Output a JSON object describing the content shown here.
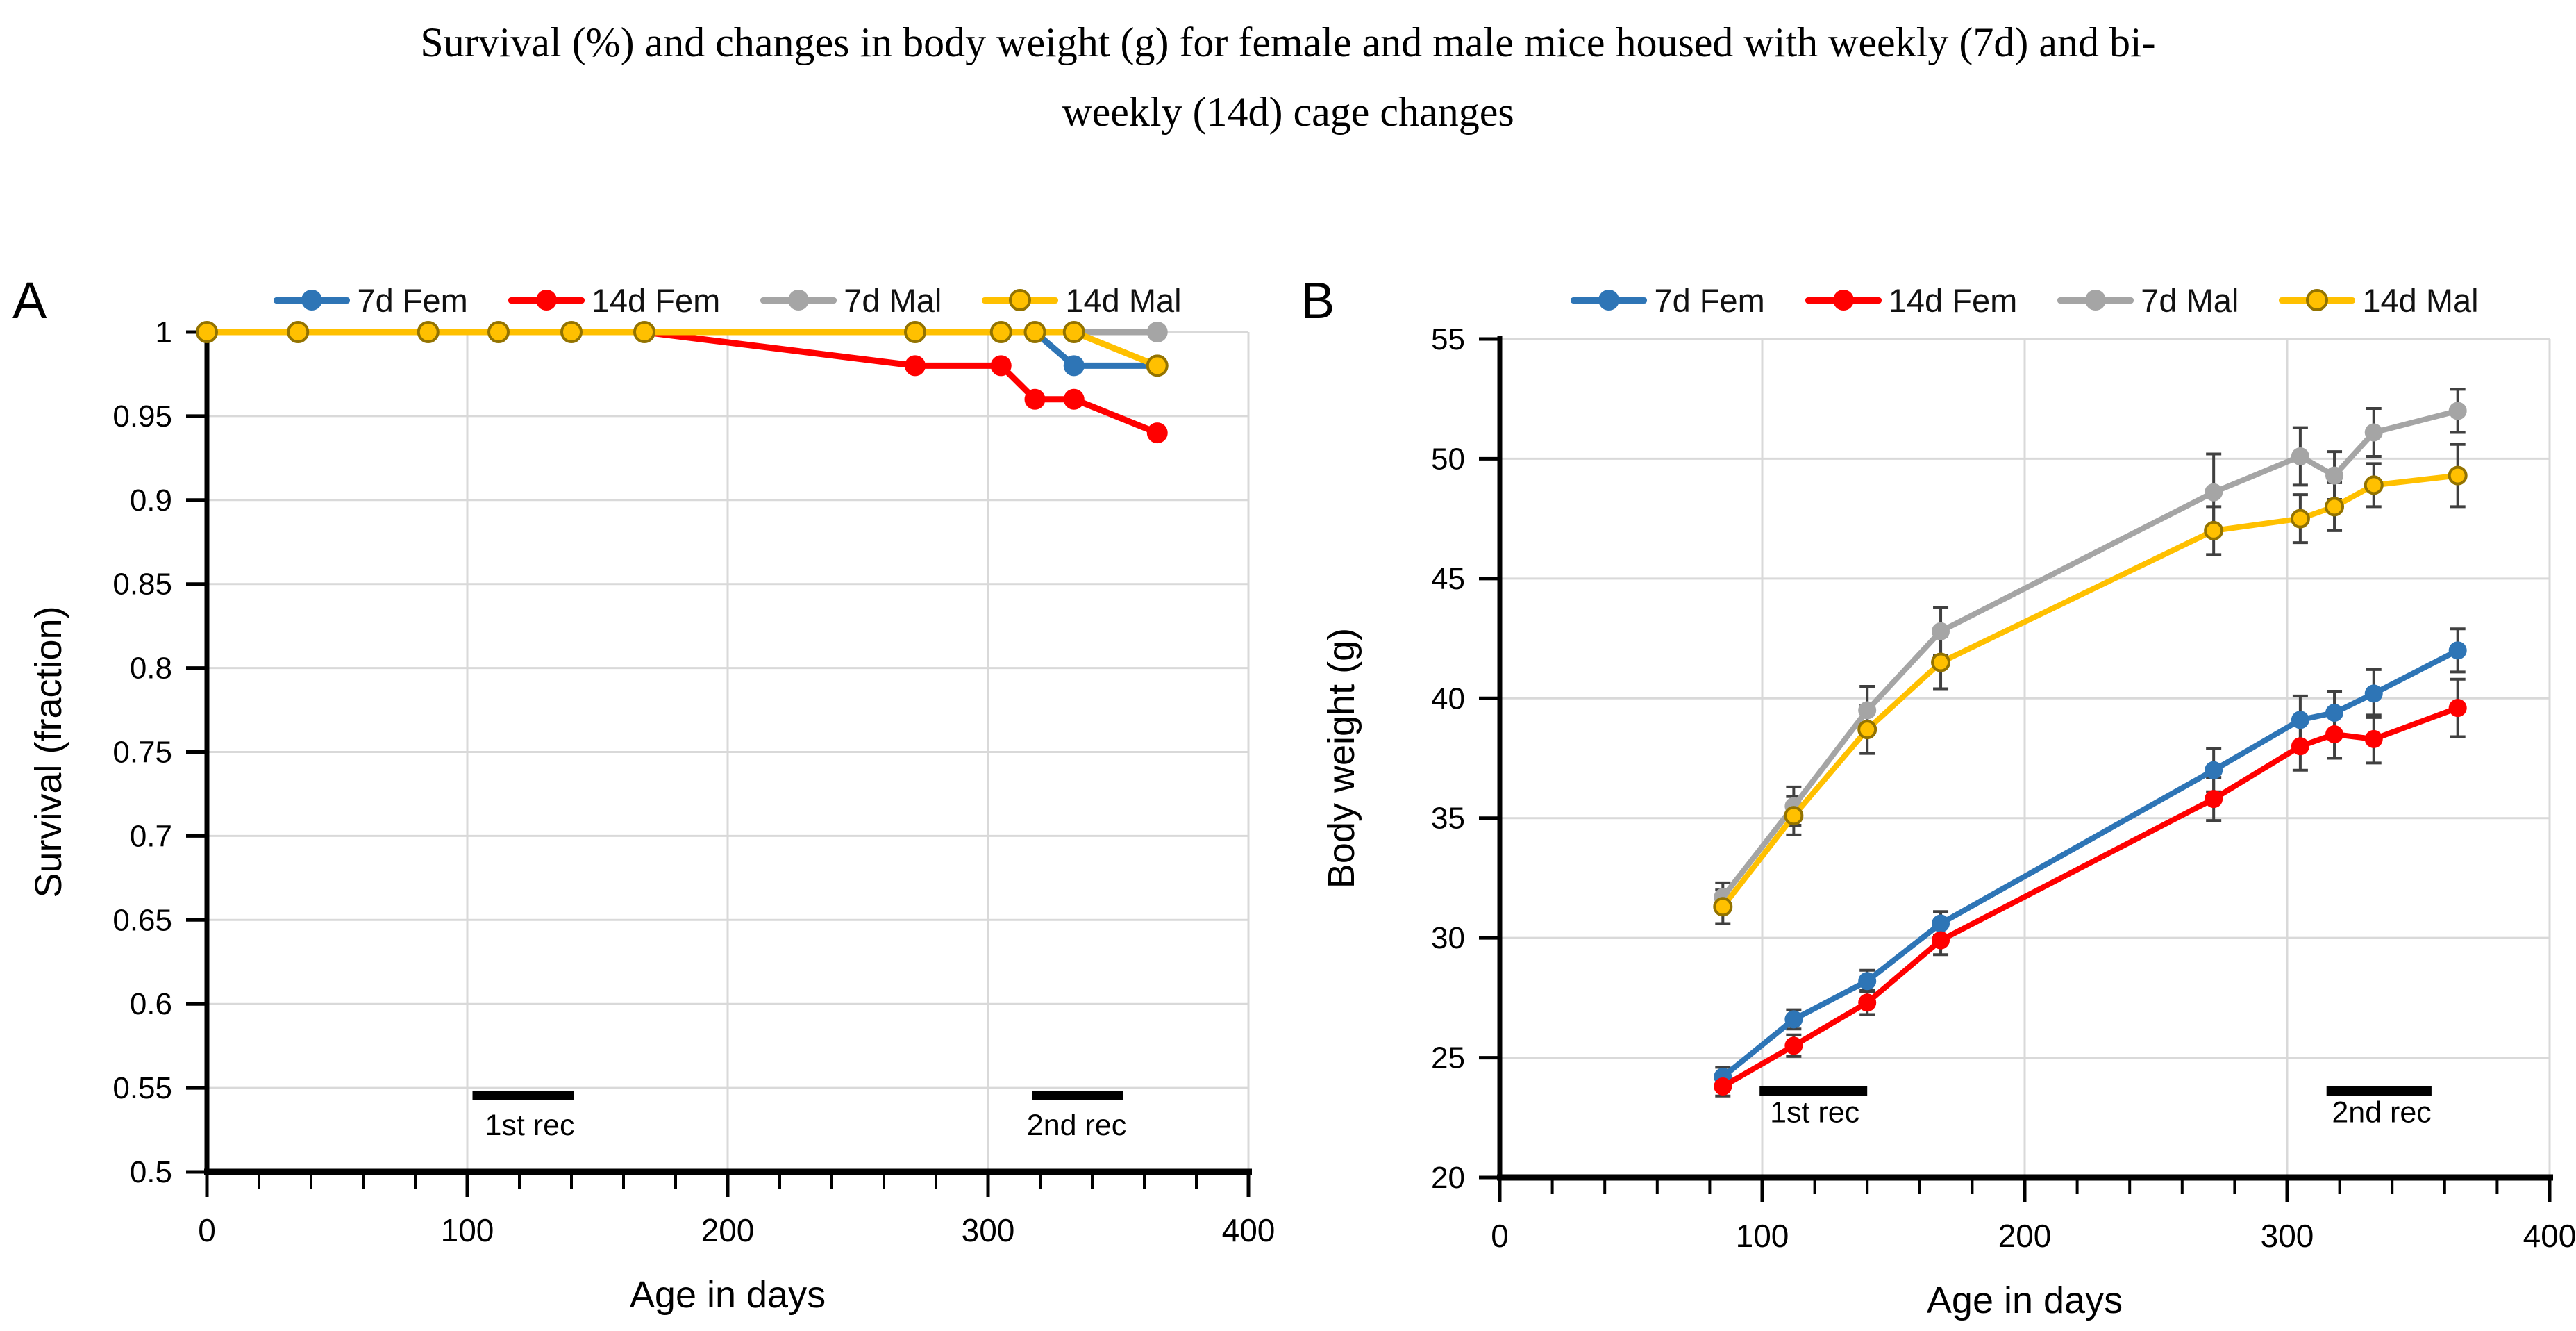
{
  "title": {
    "line1": "Survival (%) and changes in body weight (g) for female and male mice housed with weekly (7d) and bi-",
    "line2": "weekly (14d) cage changes"
  },
  "colors": {
    "background": "#FFFFFF",
    "gridline": "#D9D9D9",
    "axis": "#000000",
    "error_bar": "#404040",
    "annotation": "#000000",
    "blue": "#2E75B6",
    "red": "#FF0000",
    "gray": "#A5A5A5",
    "yellow": "#FFC000",
    "yellow_marker_ring": "#937300"
  },
  "chart_data": [
    {
      "type": "line",
      "panel_label": "A",
      "xlabel": "Age in days",
      "ylabel": "Survival (fraction)",
      "xlim": [
        0,
        400
      ],
      "ylim": [
        0.5,
        1.0
      ],
      "grid": true,
      "legend_position": "top",
      "xticks": {
        "values": [
          0,
          100,
          200,
          300,
          400
        ],
        "labels": [
          "0",
          "100",
          "200",
          "300",
          "400"
        ],
        "minor_step": 20
      },
      "yticks": {
        "values": [
          0.5,
          0.55,
          0.6,
          0.65,
          0.7,
          0.75,
          0.8,
          0.85,
          0.9,
          0.95,
          1.0
        ],
        "labels": [
          "0.5",
          "0.55",
          "0.6",
          "0.65",
          "0.7",
          "0.75",
          "0.8",
          "0.85",
          "0.9",
          "0.95",
          "1"
        ]
      },
      "x": [
        0,
        35,
        85,
        112,
        140,
        168,
        272,
        305,
        318,
        333,
        365
      ],
      "series": [
        {
          "name": "7d Fem",
          "color": "#2E75B6",
          "marker_fill": "#2E75B6",
          "marker_stroke": "none",
          "values": [
            1,
            1,
            1,
            1,
            1,
            1,
            1,
            1,
            1,
            0.98,
            0.98
          ]
        },
        {
          "name": "14d Fem",
          "color": "#FF0000",
          "marker_fill": "#FF0000",
          "marker_stroke": "none",
          "values": [
            1,
            1,
            1,
            1,
            1,
            1,
            0.98,
            0.98,
            0.96,
            0.96,
            0.94
          ]
        },
        {
          "name": "7d Mal",
          "color": "#A5A5A5",
          "marker_fill": "#A5A5A5",
          "marker_stroke": "none",
          "values": [
            1,
            1,
            1,
            1,
            1,
            1,
            1,
            1,
            1,
            1,
            1
          ]
        },
        {
          "name": "14d Mal",
          "color": "#FFC000",
          "marker_fill": "#FFC000",
          "marker_stroke": "#937300",
          "values": [
            1,
            1,
            1,
            1,
            1,
            1,
            1,
            1,
            1,
            1,
            0.98
          ]
        }
      ],
      "annotations": [
        {
          "text": "1st rec",
          "bar_x": [
            102,
            141
          ],
          "bar_y": 0.5455,
          "text_x": 124,
          "text_y": 0.522
        },
        {
          "text": "2nd rec",
          "bar_x": [
            317,
            352
          ],
          "bar_y": 0.5455,
          "text_x": 334,
          "text_y": 0.522
        }
      ]
    },
    {
      "type": "line",
      "panel_label": "B",
      "xlabel": "Age in days",
      "ylabel": "Body weight (g)",
      "xlim": [
        0,
        400
      ],
      "ylim": [
        20,
        55
      ],
      "grid": true,
      "legend_position": "top",
      "xticks": {
        "values": [
          0,
          100,
          200,
          300,
          400
        ],
        "labels": [
          "0",
          "100",
          "200",
          "300",
          "400"
        ],
        "minor_step": 20
      },
      "yticks": {
        "values": [
          20,
          25,
          30,
          35,
          40,
          45,
          50,
          55
        ],
        "labels": [
          "20",
          "25",
          "30",
          "35",
          "40",
          "45",
          "50",
          "55"
        ]
      },
      "x": [
        85,
        112,
        140,
        168,
        272,
        305,
        318,
        333,
        365
      ],
      "series": [
        {
          "name": "7d Fem",
          "color": "#2E75B6",
          "marker_fill": "#2E75B6",
          "marker_stroke": "none",
          "values": [
            24.2,
            26.6,
            28.2,
            30.6,
            37.0,
            39.1,
            39.4,
            40.2,
            42.0
          ],
          "errors": [
            0.4,
            0.4,
            0.45,
            0.5,
            0.9,
            1.0,
            0.9,
            1.0,
            0.9
          ]
        },
        {
          "name": "14d Fem",
          "color": "#FF0000",
          "marker_fill": "#FF0000",
          "marker_stroke": "none",
          "values": [
            23.8,
            25.5,
            27.3,
            29.9,
            35.8,
            38.0,
            38.5,
            38.3,
            39.6
          ],
          "errors": [
            0.4,
            0.45,
            0.5,
            0.6,
            0.9,
            1.0,
            1.0,
            1.0,
            1.2
          ]
        },
        {
          "name": "7d Mal",
          "color": "#A5A5A5",
          "marker_fill": "#A5A5A5",
          "marker_stroke": "none",
          "values": [
            31.7,
            35.5,
            39.5,
            42.8,
            48.6,
            50.1,
            49.3,
            51.1,
            52.0
          ],
          "errors": [
            0.6,
            0.8,
            1.0,
            1.0,
            1.6,
            1.2,
            1.0,
            1.0,
            0.9
          ]
        },
        {
          "name": "14d Mal",
          "color": "#FFC000",
          "marker_fill": "#FFC000",
          "marker_stroke": "#937300",
          "values": [
            31.3,
            35.1,
            38.7,
            41.5,
            47.0,
            47.5,
            48.0,
            48.9,
            49.3
          ],
          "errors": [
            0.7,
            0.8,
            1.0,
            1.1,
            1.0,
            1.0,
            1.0,
            0.9,
            1.3
          ]
        }
      ],
      "annotations": [
        {
          "text": "1st rec",
          "bar_x": [
            99,
            140
          ],
          "bar_y": 23.6,
          "text_x": 120,
          "text_y": 22.3
        },
        {
          "text": "2nd rec",
          "bar_x": [
            315,
            355
          ],
          "bar_y": 23.6,
          "text_x": 336,
          "text_y": 22.3
        }
      ]
    }
  ]
}
